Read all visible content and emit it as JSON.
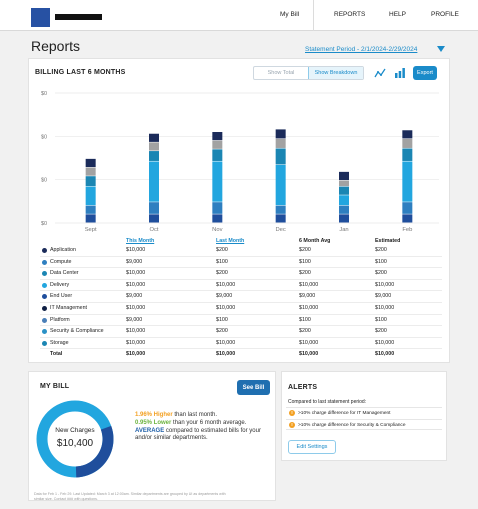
{
  "nav": {
    "my_bill": "My Bill",
    "reports": "REPORTS",
    "help": "HELP",
    "profile": "PROFILE"
  },
  "page": {
    "title": "Reports",
    "statement_period": "Statement Period - 2/1/2024-2/29/2024"
  },
  "billing": {
    "title": "BILLING LAST 6 MONTHS",
    "show_total": "Show Total",
    "show_breakdown": "Show Breakdown",
    "export": "Export",
    "line_chart_icon": "line-chart-icon",
    "bar_chart_icon": "bar-chart-icon"
  },
  "chart_data": {
    "type": "bar",
    "stacked": true,
    "categories": [
      "Sept",
      "Oct",
      "Nov",
      "Dec",
      "Jan",
      "Feb"
    ],
    "y_tick_labels": [
      "$0",
      "$0",
      "$0",
      "$0"
    ],
    "grid": true,
    "series": [
      {
        "name": "Storage",
        "color": "#1f4e9c",
        "values": [
          10,
          10,
          10,
          10,
          10,
          10
        ]
      },
      {
        "name": "Security & Compliance",
        "color": "#2e7fc0",
        "values": [
          10,
          14,
          14,
          10,
          10,
          14
        ]
      },
      {
        "name": "Delivery",
        "color": "#22a6df",
        "values": [
          22,
          47,
          47,
          47,
          12,
          47
        ]
      },
      {
        "name": "Data Center",
        "color": "#1b86b3",
        "values": [
          12,
          12,
          14,
          19,
          10,
          15
        ]
      },
      {
        "name": "Compute",
        "color": "#a2a2a2",
        "values": [
          10,
          10,
          10,
          11,
          7,
          11
        ]
      },
      {
        "name": "Application",
        "color": "#1b2b5a",
        "values": [
          10,
          10,
          10,
          11,
          10,
          10
        ]
      }
    ]
  },
  "table": {
    "headers": [
      "",
      "This Month",
      "Last Month",
      "6 Month Avg",
      "Estimated"
    ],
    "rows": [
      {
        "name": "Application",
        "color": "#1b2b5a",
        "this": "$10,000",
        "last": "$200",
        "avg": "$200",
        "est": "$200"
      },
      {
        "name": "Compute",
        "color": "#2e7fc0",
        "this": "$9,000",
        "last": "$100",
        "avg": "$100",
        "est": "$100"
      },
      {
        "name": "Data Center",
        "color": "#1b86b3",
        "this": "$10,000",
        "last": "$200",
        "avg": "$200",
        "est": "$200"
      },
      {
        "name": "Delivery",
        "color": "#22a6df",
        "this": "$10,000",
        "last": "$10,000",
        "avg": "$10,000",
        "est": "$10,000"
      },
      {
        "name": "End User",
        "color": "#1f4e9c",
        "this": "$9,000",
        "last": "$9,000",
        "avg": "$9,000",
        "est": "$9,000"
      },
      {
        "name": "IT Management",
        "color": "#0f1f44",
        "this": "$10,000",
        "last": "$10,000",
        "avg": "$10,000",
        "est": "$10,000"
      },
      {
        "name": "Platform",
        "color": "#4a7fb8",
        "this": "$9,000",
        "last": "$100",
        "avg": "$100",
        "est": "$100"
      },
      {
        "name": "Security & Compliance",
        "color": "#2a91c6",
        "this": "$10,000",
        "last": "$200",
        "avg": "$200",
        "est": "$200"
      },
      {
        "name": "Storage",
        "color": "#1b86b3",
        "this": "$10,000",
        "last": "$10,000",
        "avg": "$10,000",
        "est": "$10,000"
      }
    ],
    "total": {
      "name": "Total",
      "this": "$10,000",
      "last": "$10,000",
      "avg": "$10,000",
      "est": "$10,000"
    }
  },
  "my_bill": {
    "title": "MY BILL",
    "see_bill": "See Bill",
    "donut_label": "New Charges",
    "donut_value": "$10,400",
    "donut_fraction_dark": 0.3,
    "higher_pct": "1.96% Higher",
    "higher_text": " than last month.",
    "lower_pct": "0.95% Lower",
    "lower_text": " than your 6 month average.",
    "average_word": "AVERAGE",
    "average_text": " compared to estimated bills for your and/or similar departments.",
    "footnote": "Data for Feb 1 - Feb 29. Last Updated: March 3 at 12:00am. Similar departments are grouped by UI as departments with similar size. Contact ### with questions."
  },
  "alerts": {
    "title": "ALERTS",
    "subtitle": "Compared to last statement period:",
    "items": [
      ">10% charge difference for IT Management",
      ">10% charge difference for Security & Compliance"
    ],
    "edit_settings": "Edit Settings"
  }
}
